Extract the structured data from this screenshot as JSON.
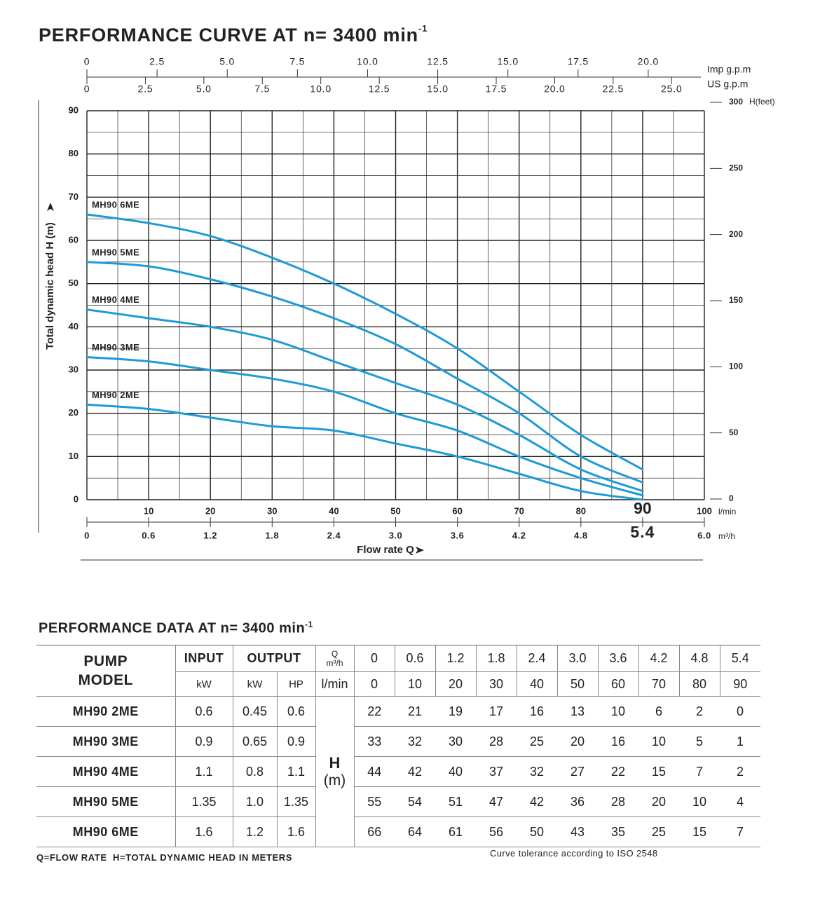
{
  "chart_data": {
    "type": "line",
    "title": "PERFORMANCE CURVE AT n= 3400 min",
    "title_sup": "-1",
    "x_label": "Flow rate Q",
    "y_label": "Total dynamic head H (m)",
    "x": [
      0,
      10,
      20,
      30,
      40,
      50,
      60,
      70,
      80,
      90
    ],
    "series": [
      {
        "name": "MH90 2ME",
        "color": "#1d9bd7",
        "values": [
          22,
          21,
          19,
          17,
          16,
          13,
          10,
          6,
          2,
          0
        ]
      },
      {
        "name": "MH90 3ME",
        "color": "#1d9bd7",
        "values": [
          33,
          32,
          30,
          28,
          25,
          20,
          16,
          10,
          5,
          1
        ]
      },
      {
        "name": "MH90 4ME",
        "color": "#1d9bd7",
        "values": [
          44,
          42,
          40,
          37,
          32,
          27,
          22,
          15,
          7,
          2
        ]
      },
      {
        "name": "MH90 5ME",
        "color": "#1d9bd7",
        "values": [
          55,
          54,
          51,
          47,
          42,
          36,
          28,
          20,
          10,
          4
        ]
      },
      {
        "name": "MH90 6ME",
        "color": "#1d9bd7",
        "values": [
          66,
          64,
          61,
          56,
          50,
          43,
          35,
          25,
          15,
          7
        ]
      }
    ],
    "xlim": [
      0,
      100
    ],
    "xticks": [
      10,
      20,
      30,
      40,
      50,
      60,
      70,
      80,
      90,
      100
    ],
    "x_unit": "l/min",
    "x_highlight": 90,
    "x2lim": [
      0,
      6
    ],
    "x2ticks": [
      0,
      0.6,
      1.2,
      1.8,
      2.4,
      {
        "value": 3,
        "label": "3.0"
      },
      3.6,
      4.2,
      4.8,
      5.4,
      {
        "value": 6,
        "label": "6.0"
      }
    ],
    "x2_unit": "m³/h",
    "x2_highlight": 5.4,
    "ylim": [
      0,
      90
    ],
    "yticks": [
      0,
      10,
      20,
      30,
      40,
      50,
      60,
      70,
      80,
      90
    ],
    "y2_label": "H(feet)",
    "y2lim": [
      0,
      300
    ],
    "y2ticks": [
      0,
      50,
      100,
      150,
      200,
      250,
      300
    ],
    "imp_label": "Imp g.p.m",
    "imp_lim": [
      0,
      22
    ],
    "imp_ticks": [
      0,
      2.5,
      {
        "value": 5,
        "label": "5.0"
      },
      7.5,
      {
        "value": 10,
        "label": "10.0"
      },
      12.5,
      {
        "value": 15,
        "label": "15.0"
      },
      17.5,
      {
        "value": 20,
        "label": "20.0"
      }
    ],
    "us_label": "US g.p.m",
    "us_lim": [
      0,
      26.4
    ],
    "us_ticks": [
      0,
      2.5,
      {
        "value": 5,
        "label": "5.0"
      },
      7.5,
      {
        "value": 10,
        "label": "10.0"
      },
      12.5,
      {
        "value": 15,
        "label": "15.0"
      },
      17.5,
      {
        "value": 20,
        "label": "20.0"
      },
      22.5,
      {
        "value": 25,
        "label": "25.0"
      }
    ],
    "grid": true,
    "xgrid": [
      0,
      5,
      10,
      15,
      20,
      25,
      30,
      35,
      40,
      45,
      50,
      55,
      60,
      65,
      70,
      75,
      80,
      85,
      90,
      95,
      100
    ],
    "ygrid": [
      0,
      5,
      10,
      15,
      20,
      25,
      30,
      35,
      40,
      45,
      50,
      55,
      60,
      65,
      70,
      75,
      80,
      85,
      90
    ]
  },
  "table": {
    "title": "PERFORMANCE DATA AT n= 3400 min",
    "title_sup": "-1",
    "header": {
      "model": "PUMP MODEL",
      "input": "INPUT",
      "output": "OUTPUT",
      "q": "Q",
      "q_unit": "m³/h",
      "input_unit": "kW",
      "output_kw": "kW",
      "output_hp": "HP",
      "q_lmin": "l/min",
      "h": "H",
      "h_unit": "(m)"
    },
    "q_m3h": [
      "0",
      "0.6",
      "1.2",
      "1.8",
      "2.4",
      "3.0",
      "3.6",
      "4.2",
      "4.8",
      "5.4"
    ],
    "q_lmin": [
      "0",
      "10",
      "20",
      "30",
      "40",
      "50",
      "60",
      "70",
      "80",
      "90"
    ],
    "rows": [
      {
        "model": "MH90 2ME",
        "input": "0.6",
        "output_kw": "0.45",
        "output_hp": "0.6",
        "head": [
          "22",
          "21",
          "19",
          "17",
          "16",
          "13",
          "10",
          "6",
          "2",
          "0"
        ]
      },
      {
        "model": "MH90 3ME",
        "input": "0.9",
        "output_kw": "0.65",
        "output_hp": "0.9",
        "head": [
          "33",
          "32",
          "30",
          "28",
          "25",
          "20",
          "16",
          "10",
          "5",
          "1"
        ]
      },
      {
        "model": "MH90 4ME",
        "input": "1.1",
        "output_kw": "0.8",
        "output_hp": "1.1",
        "head": [
          "44",
          "42",
          "40",
          "37",
          "32",
          "27",
          "22",
          "15",
          "7",
          "2"
        ]
      },
      {
        "model": "MH90 5ME",
        "input": "1.35",
        "output_kw": "1.0",
        "output_hp": "1.35",
        "head": [
          "55",
          "54",
          "51",
          "47",
          "42",
          "36",
          "28",
          "20",
          "10",
          "4"
        ]
      },
      {
        "model": "MH90 6ME",
        "input": "1.6",
        "output_kw": "1.2",
        "output_hp": "1.6",
        "head": [
          "66",
          "64",
          "61",
          "56",
          "50",
          "43",
          "35",
          "25",
          "15",
          "7"
        ]
      }
    ],
    "footnote": "Q=FLOW RATE  H=TOTAL DYNAMIC HEAD IN METERS",
    "tolerance": "Curve tolerance according to ISO 2548"
  }
}
